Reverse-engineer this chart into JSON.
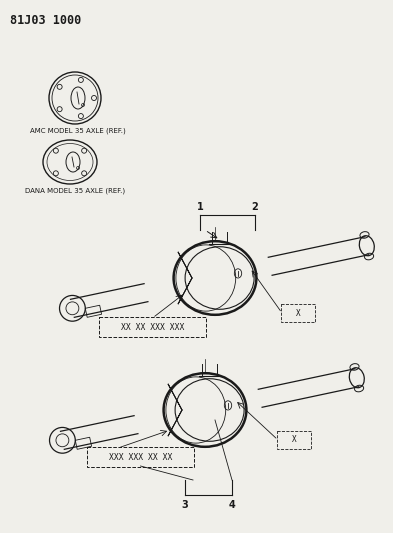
{
  "title_text": "81J03 1000",
  "background_color": "#f0efea",
  "line_color": "#1a1a1a",
  "label_color": "#1a1a1a",
  "amc_label": "AMC MODEL 35 AXLE (REF.)",
  "dana_label": "DANA MODEL 35 AXLE (REF.)",
  "part_number_1_label": "XX XX XXX XXX",
  "part_number_2_label": "XXX XXX XX XX",
  "figsize": [
    3.93,
    5.33
  ],
  "dpi": 100,
  "title_fontsize": 8.5,
  "label_fontsize": 5.0,
  "callout_fontsize": 7.0
}
